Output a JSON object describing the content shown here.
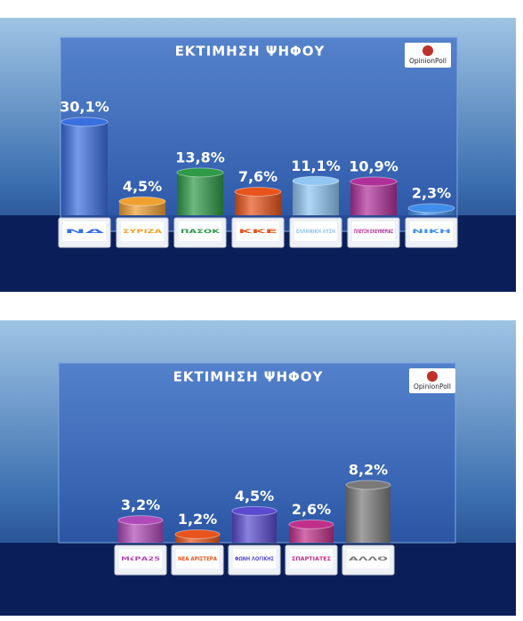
{
  "chart_data": [
    {
      "type": "bar",
      "title": "ΕΚΤΙΜΗΣΗ ΨΗΦΟΥ",
      "logo": "OpinionPoll",
      "categories": [
        "ΝΔ",
        "ΣΥΡΙΖΑ",
        "ΠΑΣΟΚ",
        "ΚΚΕ",
        "ΕΛΛΗΝΙΚΗ ΛΥΣΗ",
        "ΠΛΕΥΣΗ ΕΛΕΥΘΕΡΙΑΣ",
        "ΝΙΚΗ"
      ],
      "values": [
        30.1,
        4.5,
        13.8,
        7.6,
        11.1,
        10.9,
        2.3
      ],
      "value_labels": [
        "30,1%",
        "4,5%",
        "13,8%",
        "7,6%",
        "11,1%",
        "10,9%",
        "2,3%"
      ],
      "colors": [
        "#3a6fe0",
        "#f0a030",
        "#2e9a48",
        "#e8541c",
        "#8fc6f2",
        "#b0309a",
        "#3f8ee8"
      ]
    },
    {
      "type": "bar",
      "title": "ΕΚΤΙΜΗΣΗ ΨΗΦΟΥ",
      "logo": "OpinionPoll",
      "categories": [
        "ΜέΡΑ25",
        "ΝΕΑ ΑΡΙΣΤΕΡΑ",
        "ΦΩΝΗ ΛΟΓΙΚΗΣ",
        "ΣΠΑΡΤΙΑΤΕΣ",
        "ΑΛΛΟ"
      ],
      "values": [
        3.2,
        1.2,
        4.5,
        2.6,
        8.2
      ],
      "value_labels": [
        "3,2%",
        "1,2%",
        "4,5%",
        "2,6%",
        "8,2%"
      ],
      "colors": [
        "#b04ab8",
        "#e8541c",
        "#5a4ad0",
        "#c0308a",
        "#7a7a7a"
      ]
    }
  ]
}
